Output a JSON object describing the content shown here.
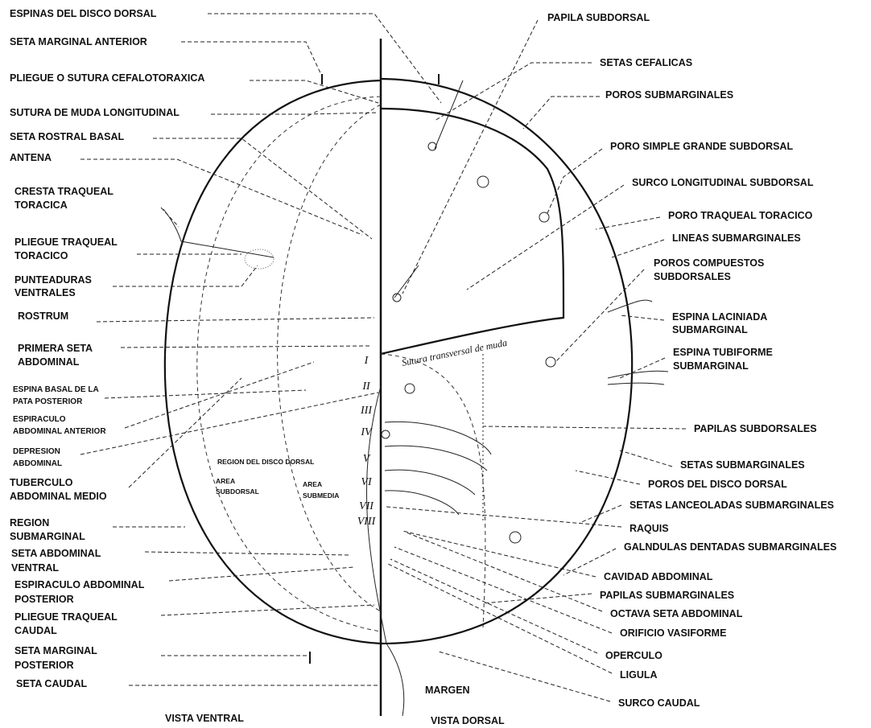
{
  "left_labels": [
    {
      "lines": [
        "ESPINAS DEL DISCO DORSAL"
      ]
    },
    {
      "lines": [
        "SETA MARGINAL ANTERIOR"
      ]
    },
    {
      "lines": [
        "PLIEGUE O SUTURA CEFALOTORAXICA"
      ]
    },
    {
      "lines": [
        "SUTURA DE MUDA LONGITUDINAL"
      ]
    },
    {
      "lines": [
        "SETA ROSTRAL BASAL"
      ]
    },
    {
      "lines": [
        "ANTENA"
      ]
    },
    {
      "lines": [
        "CRESTA TRAQUEAL",
        "TORACICA"
      ]
    },
    {
      "lines": [
        "PLIEGUE TRAQUEAL",
        "TORACICO"
      ]
    },
    {
      "lines": [
        "PUNTEADURAS",
        "VENTRALES"
      ]
    },
    {
      "lines": [
        "ROSTRUM"
      ]
    },
    {
      "lines": [
        "PRIMERA SETA",
        "ABDOMINAL"
      ]
    },
    {
      "lines": [
        "ESPINA BASAL DE LA",
        "PATA POSTERIOR"
      ]
    },
    {
      "lines": [
        "ESPIRACULO",
        "ABDOMINAL ANTERIOR"
      ]
    },
    {
      "lines": [
        "DEPRESION",
        "ABDOMINAL"
      ]
    },
    {
      "lines": [
        "TUBERCULO",
        "ABDOMINAL MEDIO"
      ]
    },
    {
      "lines": [
        "REGION",
        "SUBMARGINAL"
      ]
    },
    {
      "lines": [
        "SETA  ABDOMINAL",
        "VENTRAL"
      ]
    },
    {
      "lines": [
        "ESPIRACULO ABDOMINAL",
        "POSTERIOR"
      ]
    },
    {
      "lines": [
        "PLIEGUE TRAQUEAL",
        "CAUDAL"
      ]
    },
    {
      "lines": [
        "SETA MARGINAL",
        "POSTERIOR"
      ]
    },
    {
      "lines": [
        "SETA CAUDAL"
      ]
    }
  ],
  "right_labels": [
    {
      "lines": [
        "PAPILA SUBDORSAL"
      ]
    },
    {
      "lines": [
        "SETAS CEFALICAS"
      ]
    },
    {
      "lines": [
        "POROS SUBMARGINALES"
      ]
    },
    {
      "lines": [
        "PORO SIMPLE GRANDE SUBDORSAL"
      ]
    },
    {
      "lines": [
        "SURCO LONGITUDINAL SUBDORSAL"
      ]
    },
    {
      "lines": [
        "PORO TRAQUEAL TORACICO"
      ]
    },
    {
      "lines": [
        "LINEAS SUBMARGINALES"
      ]
    },
    {
      "lines": [
        "POROS COMPUESTOS",
        "SUBDORSALES"
      ]
    },
    {
      "lines": [
        "ESPINA LACINIADA",
        "SUBMARGINAL"
      ]
    },
    {
      "lines": [
        "ESPINA TUBIFORME",
        "SUBMARGINAL"
      ]
    },
    {
      "lines": [
        "PAPILAS SUBDORSALES"
      ]
    },
    {
      "lines": [
        "SETAS SUBMARGINALES"
      ]
    },
    {
      "lines": [
        "POROS DEL DISCO DORSAL"
      ]
    },
    {
      "lines": [
        "SETAS LANCEOLADAS SUBMARGINALES"
      ]
    },
    {
      "lines": [
        "RAQUIS"
      ]
    },
    {
      "lines": [
        "GALNDULAS  DENTADAS SUBMARGINALES"
      ]
    },
    {
      "lines": [
        "CAVIDAD ABDOMINAL"
      ]
    },
    {
      "lines": [
        "PAPILAS SUBMARGINALES"
      ]
    },
    {
      "lines": [
        "OCTAVA SETA ABDOMINAL"
      ]
    },
    {
      "lines": [
        "ORIFICIO VASIFORME"
      ]
    },
    {
      "lines": [
        "OPERCULO"
      ]
    },
    {
      "lines": [
        "LIGULA"
      ]
    },
    {
      "lines": [
        "SURCO CAUDAL"
      ]
    }
  ],
  "segments": [
    "I",
    "II",
    "III",
    "IV",
    "V",
    "VI",
    "VII",
    "VIII"
  ],
  "interior": {
    "disc_region": "REGION DEL DISCO DORSAL",
    "subdorsal_area": [
      "AREA",
      "SUBDORSAL"
    ],
    "submedial_area": [
      "AREA",
      "SUBMEDIA"
    ],
    "suture": "Sutura transversal de muda"
  },
  "footer": {
    "margin": "MARGEN",
    "ventral_view": "VISTA VENTRAL",
    "dorsal_view": "VISTA DORSAL"
  }
}
